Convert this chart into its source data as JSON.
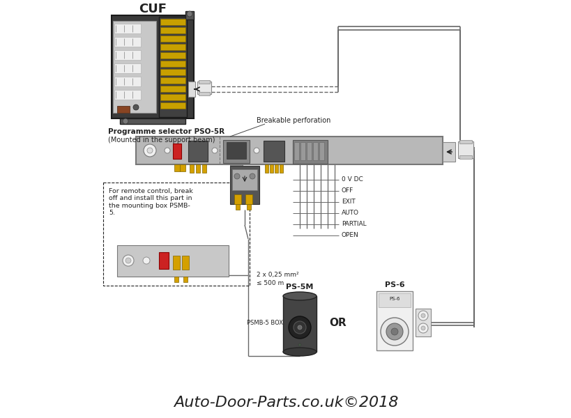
{
  "bg_color": "#ffffff",
  "title": "Auto-Door-Parts.co.uk©2018",
  "title_style": "italic",
  "title_fontsize": 16,
  "cuf_label": "CUF",
  "prog_selector_label": "Programme selector PSO-5R",
  "prog_selector_sublabel": "(Mounted in the support beam)",
  "breakable_label": "Breakable perforation",
  "remote_text": "For remote control, break\noff and install this part in\nthe mounting box PSMB-\n5.",
  "wire_label1": "2 x 0,25 mm²",
  "wire_label2": "≤ 500 m",
  "labels_right": [
    "0 V DC",
    "OFF",
    "EXIT",
    "AUTO",
    "PARTIAL",
    "OPEN"
  ],
  "ps5m_label": "PS-5M",
  "ps6_label": "PS-6",
  "psmb_label": "PSMB-5 BOX",
  "or_label": "OR",
  "line_color": "#666666",
  "dark_color": "#222222",
  "red_color": "#cc2222",
  "gray_color": "#888888",
  "light_gray": "#cccccc",
  "medium_gray": "#999999",
  "rail_color": "#b8b8b8",
  "yellow_color": "#d4a000"
}
